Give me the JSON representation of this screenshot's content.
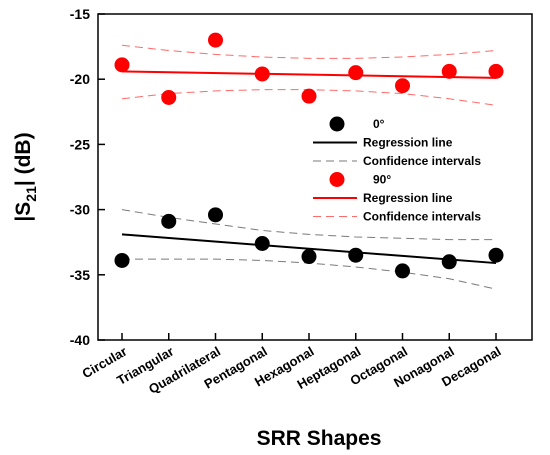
{
  "chart_data": {
    "type": "scatter",
    "xlabel": "SRR Shapes",
    "ylabel_main": "|S",
    "ylabel_sub": "21",
    "ylabel_tail": "| (dB)",
    "ylim": [
      -40,
      -15
    ],
    "yticks": [
      -15,
      -20,
      -25,
      -30,
      -35,
      -40
    ],
    "grid": false,
    "legend_position": "center-right",
    "categories": [
      "Circular",
      "Triangular",
      "Quadrilateral",
      "Pentagonal",
      "Hexagonal",
      "Heptagonal",
      "Octagonal",
      "Nonagonal",
      "Decagonal"
    ],
    "series": [
      {
        "name": "0°",
        "color": "#000000",
        "values": [
          -33.9,
          -30.9,
          -30.4,
          -32.6,
          -33.6,
          -33.5,
          -34.7,
          -34.0,
          -33.5
        ],
        "regression": {
          "label": "Regression line",
          "start": -31.9,
          "end": -34.1
        },
        "confidence": {
          "label": "Confidence intervals",
          "upper": [
            -30.0,
            -30.6,
            -31.1,
            -31.6,
            -31.9,
            -32.1,
            -32.2,
            -32.3,
            -32.3
          ],
          "lower": [
            -33.8,
            -33.8,
            -33.8,
            -33.9,
            -34.1,
            -34.4,
            -34.8,
            -35.3,
            -36.1
          ]
        }
      },
      {
        "name": "90°",
        "color": "#ff0000",
        "values": [
          -18.9,
          -21.4,
          -17.0,
          -19.6,
          -21.3,
          -19.5,
          -20.5,
          -19.4,
          -19.4
        ],
        "regression": {
          "label": "Regression line",
          "start": -19.4,
          "end": -19.9
        },
        "confidence": {
          "label": "Confidence intervals",
          "upper": [
            -17.4,
            -17.8,
            -18.1,
            -18.3,
            -18.4,
            -18.4,
            -18.3,
            -18.1,
            -17.8
          ],
          "lower": [
            -21.5,
            -21.1,
            -20.9,
            -20.8,
            -20.8,
            -20.9,
            -21.1,
            -21.5,
            -22.0
          ]
        }
      }
    ]
  }
}
